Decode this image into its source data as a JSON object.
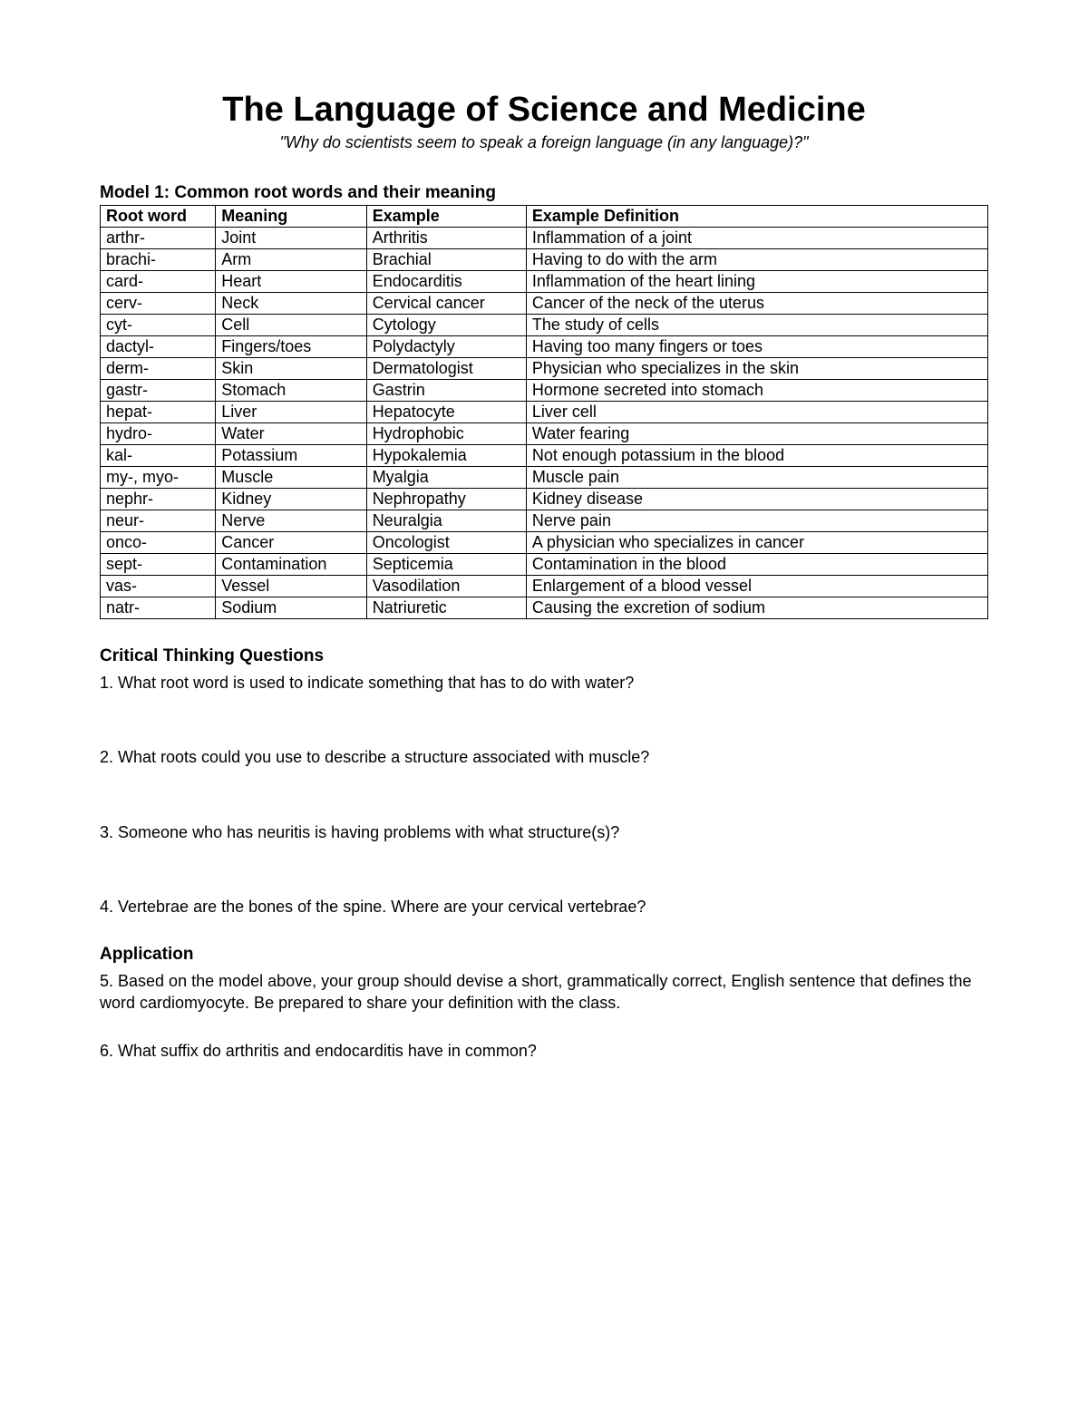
{
  "title": "The Language of Science and Medicine",
  "subtitle": "\"Why do scientists seem to speak a foreign language (in any language)?\"",
  "model_heading": "Model 1: Common root words and their meaning",
  "table": {
    "columns": [
      "Root word",
      "Meaning",
      "Example",
      "Example Definition"
    ],
    "rows": [
      [
        "arthr-",
        "Joint",
        "Arthritis",
        "Inflammation of a joint"
      ],
      [
        "brachi-",
        "Arm",
        "Brachial",
        "Having to do with the arm"
      ],
      [
        "card-",
        "Heart",
        "Endocarditis",
        "Inflammation of the heart lining"
      ],
      [
        "cerv-",
        "Neck",
        "Cervical cancer",
        "Cancer of the neck of the uterus"
      ],
      [
        "cyt-",
        "Cell",
        "Cytology",
        "The study of cells"
      ],
      [
        "dactyl-",
        "Fingers/toes",
        "Polydactyly",
        "Having too many fingers or toes"
      ],
      [
        "derm-",
        "Skin",
        "Dermatologist",
        "Physician who specializes in the skin"
      ],
      [
        "gastr-",
        "Stomach",
        "Gastrin",
        "Hormone secreted into stomach"
      ],
      [
        "hepat-",
        "Liver",
        "Hepatocyte",
        "Liver cell"
      ],
      [
        "hydro-",
        "Water",
        "Hydrophobic",
        "Water fearing"
      ],
      [
        "kal-",
        "Potassium",
        "Hypokalemia",
        "Not enough potassium in the blood"
      ],
      [
        "my-, myo-",
        "Muscle",
        "Myalgia",
        "Muscle pain"
      ],
      [
        "nephr-",
        "Kidney",
        "Nephropathy",
        "Kidney disease"
      ],
      [
        "neur-",
        "Nerve",
        "Neuralgia",
        "Nerve pain"
      ],
      [
        "onco-",
        "Cancer",
        "Oncologist",
        "A physician who specializes in cancer"
      ],
      [
        "sept-",
        "Contamination",
        "Septicemia",
        "Contamination in the blood"
      ],
      [
        "vas-",
        "Vessel",
        "Vasodilation",
        "Enlargement of a blood vessel"
      ],
      [
        "natr-",
        "Sodium",
        "Natriuretic",
        "Causing the excretion of sodium"
      ]
    ]
  },
  "ctq_heading": "Critical Thinking Questions",
  "questions_ctq": [
    "1.  What root word is used to indicate something that has to do with water?",
    "2.  What roots could you use to describe a structure associated with muscle?",
    "3.  Someone who has neuritis is having problems with what structure(s)?",
    "4.  Vertebrae are the bones of the spine.  Where are your cervical vertebrae?"
  ],
  "app_heading": "Application",
  "questions_app": [
    "5.  Based on the model above, your group should devise a short, grammatically correct, English sentence that defines the word cardiomyocyte.  Be prepared to share your definition with the class.",
    "6.  What suffix do arthritis and endocarditis have in common?"
  ]
}
